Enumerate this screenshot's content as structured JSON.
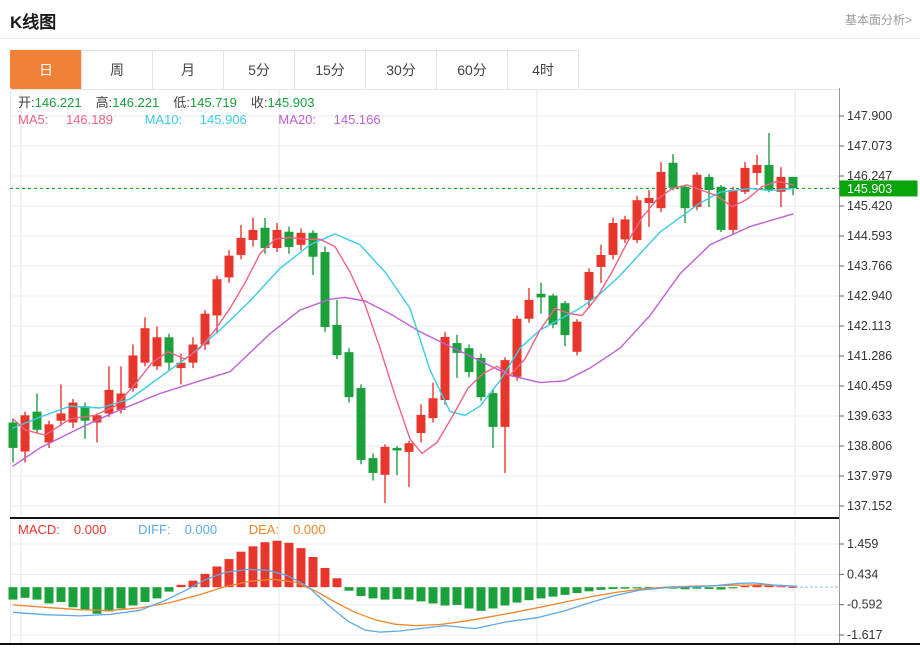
{
  "header": {
    "title": "K线图",
    "link": "基本面分析>"
  },
  "tabs": [
    {
      "name": "day",
      "label": "日",
      "active": true
    },
    {
      "name": "week",
      "label": "周",
      "active": false
    },
    {
      "name": "month",
      "label": "月",
      "active": false
    },
    {
      "name": "m5",
      "label": "5分",
      "active": false
    },
    {
      "name": "m15",
      "label": "15分",
      "active": false
    },
    {
      "name": "m30",
      "label": "30分",
      "active": false
    },
    {
      "name": "m60",
      "label": "60分",
      "active": false
    },
    {
      "name": "h4",
      "label": "4时",
      "active": false
    }
  ],
  "ohlc": {
    "open_label": "开:",
    "open": "146.221",
    "high_label": "高:",
    "high": "146.221",
    "low_label": "低:",
    "low": "145.719",
    "close_label": "收:",
    "close": "145.903"
  },
  "ma_row": {
    "ma5_label": "MA5:",
    "ma5": "146.189",
    "ma10_label": "MA10:",
    "ma10": "145.906",
    "ma20_label": "MA20:",
    "ma20": "145.166"
  },
  "macd_row": {
    "macd_label": "MACD:",
    "macd": "0.000",
    "diff_label": "DIFF:",
    "diff": "0.000",
    "dea_label": "DEA:",
    "dea": "0.000"
  },
  "price_tag": "145.903",
  "colors": {
    "accent_orange": "#f08139",
    "up": "#e7372c",
    "down": "#1ca03c",
    "ohlc_value_green": "#18a03c",
    "ma5": "#ee6283",
    "ma10": "#3bcbe3",
    "ma20": "#bf5fd4",
    "diff_blue": "#5ea8e8",
    "dea_orange": "#f0862b",
    "macd_label_red": "#e7372c",
    "tag_green": "#0aa30a",
    "dashed_price_line": "#12a112",
    "axis_text": "#333333"
  },
  "chart_data": {
    "type": "candlestick_with_macd",
    "main": {
      "y_ticks": [
        "147.900",
        "147.073",
        "146.247",
        "145.420",
        "144.593",
        "143.766",
        "142.940",
        "142.113",
        "141.286",
        "140.459",
        "139.633",
        "138.806",
        "137.979",
        "137.152"
      ],
      "current_price": 145.903,
      "candles_ohlc": [
        [
          139.45,
          139.55,
          138.35,
          138.75
        ],
        [
          138.65,
          139.75,
          138.35,
          139.65
        ],
        [
          139.75,
          140.25,
          139.15,
          139.25
        ],
        [
          138.9,
          139.5,
          138.75,
          139.4
        ],
        [
          139.5,
          140.5,
          139.35,
          139.7
        ],
        [
          139.45,
          140.1,
          139.3,
          140.0
        ],
        [
          139.9,
          140.0,
          139.0,
          139.5
        ],
        [
          139.45,
          139.7,
          138.9,
          139.65
        ],
        [
          139.7,
          141.0,
          139.6,
          140.35
        ],
        [
          139.8,
          141.0,
          139.7,
          140.25
        ],
        [
          140.4,
          141.6,
          140.3,
          141.3
        ],
        [
          141.1,
          142.35,
          141.0,
          142.05
        ],
        [
          141.0,
          142.1,
          140.9,
          141.8
        ],
        [
          141.8,
          141.9,
          140.9,
          141.1
        ],
        [
          140.95,
          141.35,
          140.5,
          141.1
        ],
        [
          141.1,
          141.8,
          140.95,
          141.6
        ],
        [
          141.6,
          142.55,
          141.45,
          142.45
        ],
        [
          142.4,
          143.5,
          141.9,
          143.4
        ],
        [
          143.45,
          144.2,
          143.3,
          144.05
        ],
        [
          144.07,
          144.9,
          143.95,
          144.54
        ],
        [
          144.48,
          145.1,
          144.3,
          144.76
        ],
        [
          144.82,
          145.09,
          144.1,
          144.26
        ],
        [
          144.26,
          144.95,
          144.15,
          144.76
        ],
        [
          144.71,
          144.85,
          144.1,
          144.29
        ],
        [
          144.35,
          144.8,
          144.2,
          144.68
        ],
        [
          144.68,
          144.75,
          143.52,
          144.02
        ],
        [
          144.15,
          144.3,
          141.95,
          142.08
        ],
        [
          142.14,
          142.83,
          141.2,
          141.31
        ],
        [
          141.39,
          141.5,
          140.0,
          140.15
        ],
        [
          140.4,
          140.5,
          138.3,
          138.42
        ],
        [
          138.47,
          138.6,
          137.85,
          138.06
        ],
        [
          138.01,
          138.85,
          137.23,
          138.78
        ],
        [
          138.75,
          138.8,
          138.0,
          138.68
        ],
        [
          138.64,
          138.95,
          137.67,
          138.88
        ],
        [
          139.16,
          139.95,
          138.9,
          139.66
        ],
        [
          139.57,
          140.55,
          139.45,
          140.12
        ],
        [
          140.07,
          141.95,
          139.95,
          141.81
        ],
        [
          141.64,
          141.87,
          140.68,
          141.37
        ],
        [
          141.5,
          141.6,
          140.7,
          140.84
        ],
        [
          141.23,
          141.35,
          140.05,
          140.15
        ],
        [
          140.26,
          140.35,
          138.75,
          139.33
        ],
        [
          139.33,
          141.25,
          138.06,
          141.17
        ],
        [
          140.71,
          142.4,
          140.6,
          142.31
        ],
        [
          142.31,
          143.16,
          142.2,
          142.83
        ],
        [
          143.0,
          143.3,
          142.45,
          142.9
        ],
        [
          142.95,
          143.0,
          142.05,
          142.15
        ],
        [
          142.74,
          142.8,
          141.55,
          141.86
        ],
        [
          141.4,
          142.3,
          141.3,
          142.23
        ],
        [
          142.83,
          143.7,
          142.6,
          143.6
        ],
        [
          143.74,
          144.35,
          143.3,
          144.07
        ],
        [
          144.07,
          145.1,
          143.95,
          144.95
        ],
        [
          144.5,
          145.15,
          144.4,
          145.05
        ],
        [
          144.48,
          145.7,
          144.4,
          145.58
        ],
        [
          145.5,
          145.86,
          144.84,
          145.64
        ],
        [
          145.36,
          146.63,
          145.25,
          146.36
        ],
        [
          146.61,
          146.85,
          145.85,
          145.92
        ],
        [
          145.95,
          146.0,
          144.95,
          145.36
        ],
        [
          145.39,
          146.35,
          145.3,
          146.28
        ],
        [
          146.22,
          146.3,
          145.39,
          145.86
        ],
        [
          145.95,
          146.0,
          144.7,
          144.76
        ],
        [
          144.76,
          145.95,
          144.65,
          145.86
        ],
        [
          145.81,
          146.63,
          145.75,
          146.47
        ],
        [
          146.33,
          146.83,
          146.0,
          146.55
        ],
        [
          146.55,
          147.43,
          145.8,
          145.86
        ],
        [
          145.81,
          146.49,
          145.39,
          146.22
        ],
        [
          146.221,
          146.221,
          145.719,
          145.903
        ]
      ],
      "ma5_points": [
        [
          13,
          139.55
        ],
        [
          25,
          139.25
        ],
        [
          45,
          139.1
        ],
        [
          70,
          139.55
        ],
        [
          95,
          139.65
        ],
        [
          115,
          139.9
        ],
        [
          135,
          140.5
        ],
        [
          152,
          141.1
        ],
        [
          168,
          141.4
        ],
        [
          185,
          141.2
        ],
        [
          200,
          141.5
        ],
        [
          215,
          142.0
        ],
        [
          230,
          142.6
        ],
        [
          245,
          143.3
        ],
        [
          260,
          144.1
        ],
        [
          275,
          144.5
        ],
        [
          290,
          144.55
        ],
        [
          305,
          144.5
        ],
        [
          320,
          144.5
        ],
        [
          335,
          144.3
        ],
        [
          350,
          143.6
        ],
        [
          365,
          142.7
        ],
        [
          380,
          141.5
        ],
        [
          395,
          140.2
        ],
        [
          410,
          139.0
        ],
        [
          422,
          138.6
        ],
        [
          437,
          138.9
        ],
        [
          452,
          139.6
        ],
        [
          468,
          140.4
        ],
        [
          483,
          140.8
        ],
        [
          497,
          141.0
        ],
        [
          510,
          140.75
        ],
        [
          525,
          141.2
        ],
        [
          540,
          142.0
        ],
        [
          555,
          142.6
        ],
        [
          570,
          142.45
        ],
        [
          582,
          142.4
        ],
        [
          597,
          142.9
        ],
        [
          612,
          143.6
        ],
        [
          627,
          144.4
        ],
        [
          642,
          145.1
        ],
        [
          657,
          145.6
        ],
        [
          672,
          145.9
        ],
        [
          687,
          146.0
        ],
        [
          702,
          145.85
        ],
        [
          717,
          145.7
        ],
        [
          732,
          145.4
        ],
        [
          747,
          145.6
        ],
        [
          762,
          145.95
        ],
        [
          777,
          146.1
        ],
        [
          793,
          146.0
        ]
      ],
      "ma10_points": [
        [
          13,
          139.3
        ],
        [
          40,
          139.6
        ],
        [
          70,
          139.9
        ],
        [
          100,
          139.85
        ],
        [
          130,
          140.1
        ],
        [
          160,
          140.7
        ],
        [
          190,
          141.3
        ],
        [
          220,
          142.0
        ],
        [
          250,
          142.8
        ],
        [
          280,
          143.7
        ],
        [
          310,
          144.35
        ],
        [
          335,
          144.65
        ],
        [
          360,
          144.35
        ],
        [
          385,
          143.6
        ],
        [
          410,
          142.6
        ],
        [
          430,
          140.9
        ],
        [
          450,
          139.75
        ],
        [
          465,
          139.65
        ],
        [
          480,
          139.9
        ],
        [
          500,
          140.6
        ],
        [
          520,
          141.5
        ],
        [
          540,
          142.0
        ],
        [
          560,
          142.3
        ],
        [
          580,
          142.6
        ],
        [
          600,
          143.0
        ],
        [
          620,
          143.5
        ],
        [
          640,
          144.1
        ],
        [
          660,
          144.7
        ],
        [
          680,
          145.1
        ],
        [
          700,
          145.5
        ],
        [
          720,
          145.8
        ],
        [
          750,
          145.9
        ],
        [
          770,
          145.85
        ],
        [
          793,
          145.9
        ]
      ],
      "ma20_points": [
        [
          13,
          138.25
        ],
        [
          40,
          138.75
        ],
        [
          80,
          139.3
        ],
        [
          120,
          139.8
        ],
        [
          160,
          140.25
        ],
        [
          200,
          140.6
        ],
        [
          230,
          140.85
        ],
        [
          270,
          141.9
        ],
        [
          300,
          142.55
        ],
        [
          330,
          142.85
        ],
        [
          345,
          142.9
        ],
        [
          365,
          142.8
        ],
        [
          390,
          142.45
        ],
        [
          420,
          141.95
        ],
        [
          450,
          141.55
        ],
        [
          480,
          141.15
        ],
        [
          510,
          140.75
        ],
        [
          540,
          140.55
        ],
        [
          565,
          140.6
        ],
        [
          590,
          140.95
        ],
        [
          620,
          141.5
        ],
        [
          650,
          142.4
        ],
        [
          680,
          143.55
        ],
        [
          710,
          144.35
        ],
        [
          750,
          144.85
        ],
        [
          793,
          145.2
        ]
      ]
    },
    "macd": {
      "y_ticks": [
        "1.459",
        "0.434",
        "-0.592",
        "-1.617"
      ],
      "histogram": [
        -0.42,
        -0.36,
        -0.42,
        -0.55,
        -0.5,
        -0.68,
        -0.78,
        -0.9,
        -0.82,
        -0.72,
        -0.62,
        -0.5,
        -0.38,
        -0.15,
        0.08,
        0.22,
        0.45,
        0.7,
        0.95,
        1.2,
        1.38,
        1.52,
        1.57,
        1.5,
        1.32,
        1.02,
        0.65,
        0.3,
        -0.12,
        -0.3,
        -0.38,
        -0.42,
        -0.4,
        -0.42,
        -0.48,
        -0.55,
        -0.62,
        -0.6,
        -0.72,
        -0.8,
        -0.72,
        -0.62,
        -0.52,
        -0.44,
        -0.38,
        -0.32,
        -0.26,
        -0.2,
        -0.14,
        -0.09,
        -0.06,
        -0.05,
        -0.04,
        -0.05,
        -0.04,
        -0.05,
        -0.07,
        -0.05,
        -0.06,
        -0.08,
        -0.04,
        0.04,
        0.06,
        0.05,
        0.03,
        0.01
      ],
      "diff_points": [
        [
          13,
          -0.85
        ],
        [
          45,
          -0.93
        ],
        [
          80,
          -0.97
        ],
        [
          110,
          -0.92
        ],
        [
          140,
          -0.78
        ],
        [
          165,
          -0.45
        ],
        [
          185,
          -0.12
        ],
        [
          205,
          0.25
        ],
        [
          225,
          0.5
        ],
        [
          248,
          0.6
        ],
        [
          268,
          0.57
        ],
        [
          288,
          0.38
        ],
        [
          308,
          0.02
        ],
        [
          328,
          -0.6
        ],
        [
          348,
          -1.15
        ],
        [
          365,
          -1.45
        ],
        [
          380,
          -1.52
        ],
        [
          400,
          -1.48
        ],
        [
          425,
          -1.38
        ],
        [
          445,
          -1.3
        ],
        [
          475,
          -1.4
        ],
        [
          505,
          -1.18
        ],
        [
          537,
          -1.03
        ],
        [
          565,
          -0.8
        ],
        [
          590,
          -0.52
        ],
        [
          615,
          -0.28
        ],
        [
          640,
          -0.1
        ],
        [
          665,
          -0.02
        ],
        [
          690,
          0.01
        ],
        [
          715,
          0.05
        ],
        [
          740,
          0.13
        ],
        [
          755,
          0.14
        ],
        [
          775,
          0.07
        ],
        [
          797,
          0.03
        ]
      ],
      "dea_points": [
        [
          13,
          -0.6
        ],
        [
          45,
          -0.68
        ],
        [
          80,
          -0.76
        ],
        [
          110,
          -0.79
        ],
        [
          140,
          -0.7
        ],
        [
          170,
          -0.52
        ],
        [
          200,
          -0.25
        ],
        [
          225,
          0.02
        ],
        [
          250,
          0.2
        ],
        [
          272,
          0.27
        ],
        [
          295,
          0.17
        ],
        [
          315,
          -0.12
        ],
        [
          335,
          -0.5
        ],
        [
          355,
          -0.85
        ],
        [
          375,
          -1.1
        ],
        [
          395,
          -1.25
        ],
        [
          415,
          -1.3
        ],
        [
          440,
          -1.26
        ],
        [
          465,
          -1.15
        ],
        [
          490,
          -1.0
        ],
        [
          515,
          -0.85
        ],
        [
          540,
          -0.68
        ],
        [
          565,
          -0.5
        ],
        [
          590,
          -0.33
        ],
        [
          615,
          -0.18
        ],
        [
          640,
          -0.07
        ],
        [
          665,
          0.0
        ],
        [
          690,
          0.03
        ],
        [
          715,
          0.05
        ],
        [
          740,
          0.07
        ],
        [
          760,
          0.08
        ],
        [
          780,
          0.06
        ],
        [
          797,
          0.03
        ]
      ]
    }
  }
}
